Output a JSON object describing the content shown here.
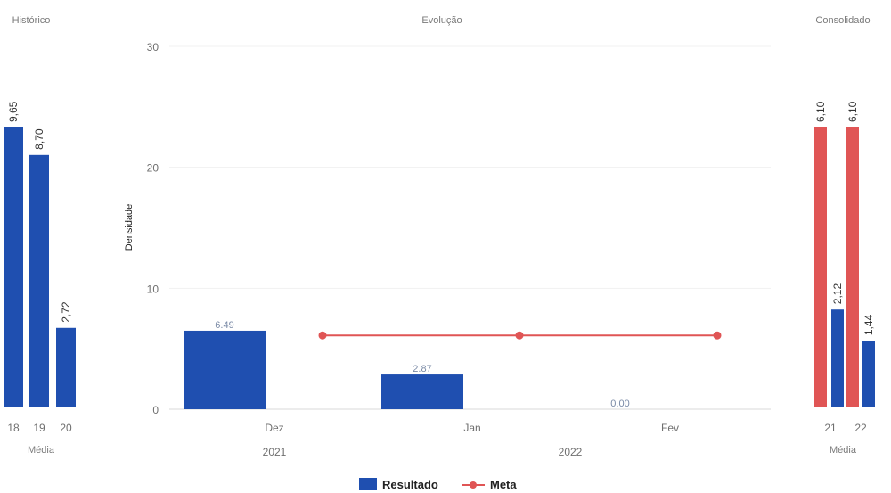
{
  "chart_data": [
    {
      "type": "bar",
      "title": "Histórico",
      "categories": [
        "18",
        "19",
        "20"
      ],
      "values": [
        9.65,
        8.7,
        2.72
      ],
      "value_labels": [
        "9,65",
        "8,70",
        "2,72"
      ],
      "xlabel": "Média",
      "ylim": [
        0,
        10
      ],
      "color": "#1f4fb0"
    },
    {
      "type": "bar",
      "title": "Evolução",
      "ylabel": "Densidade",
      "ylim": [
        0,
        30
      ],
      "yticks": [
        "0",
        "10",
        "20",
        "30"
      ],
      "categories": [
        "Dez",
        "Jan",
        "Fev"
      ],
      "year_labels": [
        "2021",
        "2022"
      ],
      "grid": true,
      "series": [
        {
          "name": "Resultado",
          "kind": "bar",
          "values": [
            6.49,
            2.87,
            0.0
          ],
          "value_labels": [
            "6.49",
            "2.87",
            "0.00"
          ],
          "color": "#1f4fb0"
        },
        {
          "name": "Meta",
          "kind": "line",
          "values": [
            6.1,
            6.1,
            6.1
          ],
          "color": "#e05555"
        }
      ],
      "legend_position": "bottom"
    },
    {
      "type": "bar",
      "title": "Consolidado",
      "categories": [
        "21",
        "22"
      ],
      "xlabel": "Média",
      "ylim": [
        0,
        6.5
      ],
      "series": [
        {
          "name": "Meta",
          "values": [
            6.1,
            6.1
          ],
          "value_labels": [
            "6,10",
            "6,10"
          ],
          "color": "#e05555"
        },
        {
          "name": "Resultado",
          "values": [
            2.12,
            1.44
          ],
          "value_labels": [
            "2,12",
            "1,44"
          ],
          "color": "#1f4fb0"
        }
      ]
    }
  ]
}
